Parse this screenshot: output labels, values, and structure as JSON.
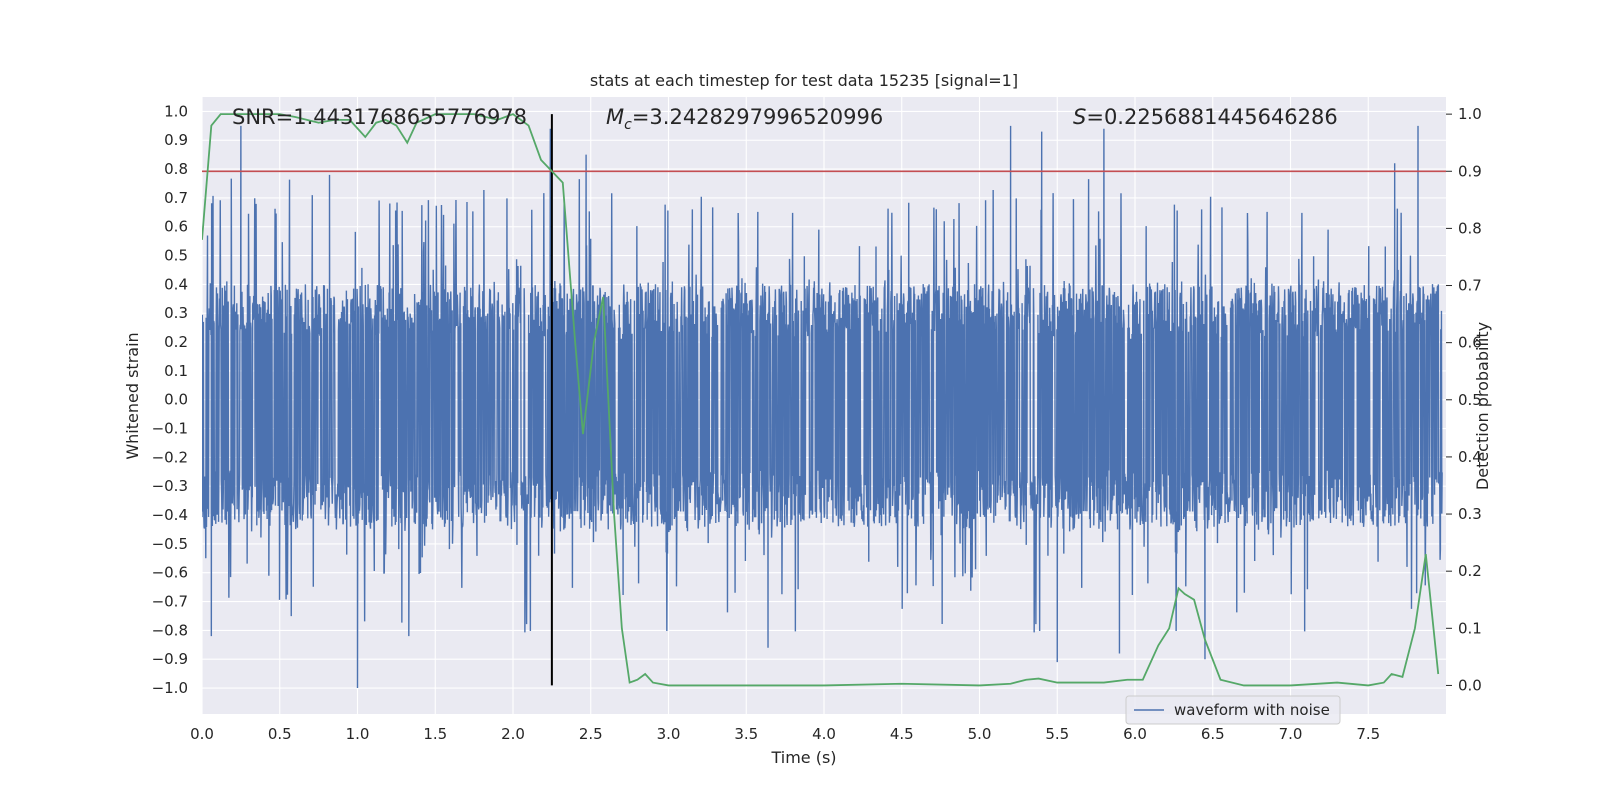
{
  "chart_data": {
    "type": "line",
    "title": "stats at each timestep for test data 15235 [signal=1]",
    "xlabel": "Time (s)",
    "ylabel_left": "Whitened strain",
    "ylabel_right": "Detection probability",
    "xlim": [
      0.0,
      8.0
    ],
    "ylim_left": [
      -1.09,
      1.05
    ],
    "ylim_right": [
      -0.05,
      1.03
    ],
    "x_ticks": [
      "0.0",
      "0.5",
      "1.0",
      "1.5",
      "2.0",
      "2.5",
      "3.0",
      "3.5",
      "4.0",
      "4.5",
      "5.0",
      "5.5",
      "6.0",
      "6.5",
      "7.0",
      "7.5"
    ],
    "y_left_ticks": [
      "1.0",
      "0.9",
      "0.8",
      "0.7",
      "0.6",
      "0.5",
      "0.4",
      "0.3",
      "0.2",
      "0.1",
      "0.0",
      "-0.1",
      "-0.2",
      "-0.3",
      "-0.4",
      "-0.5",
      "-0.6",
      "-0.7",
      "-0.8",
      "-0.9",
      "-1.0"
    ],
    "y_right_ticks": [
      "1.0",
      "0.9",
      "0.8",
      "0.7",
      "0.6",
      "0.5",
      "0.4",
      "0.3",
      "0.2",
      "0.1",
      "0.0"
    ],
    "grid": true,
    "annotations": {
      "snr": "SNR=1.4431768655776978",
      "mc_symbol": "M",
      "mc_sub": "c",
      "mc_value": "=3.2428297996520996",
      "s_symbol": "S",
      "s_value": "=0.2256881445646286"
    },
    "threshold": {
      "value": 0.9,
      "axis": "right",
      "color": "#c44e52"
    },
    "event_line": {
      "x": 2.25,
      "color": "#000000"
    },
    "legend": {
      "label": "waveform with noise",
      "position": "lower-right"
    },
    "series": [
      {
        "name": "waveform with noise",
        "axis": "left",
        "color": "#4c72b0",
        "description": "dense whitened strain noise, core band about -0.45 to 0.4 with spikes up to about 0.95 and down to about -1.0",
        "core_range": [
          -0.45,
          0.4
        ],
        "spikes_high": [
          {
            "x": 0.25,
            "y": 0.95
          },
          {
            "x": 0.82,
            "y": 0.78
          },
          {
            "x": 2.24,
            "y": 0.94
          },
          {
            "x": 2.47,
            "y": 0.85
          },
          {
            "x": 5.2,
            "y": 0.95
          },
          {
            "x": 5.4,
            "y": 0.93
          },
          {
            "x": 5.8,
            "y": 0.94
          },
          {
            "x": 7.82,
            "y": 0.95
          },
          {
            "x": 7.67,
            "y": 0.82
          }
        ],
        "spikes_low": [
          {
            "x": 1.0,
            "y": -1.0
          },
          {
            "x": 0.06,
            "y": -0.82
          },
          {
            "x": 1.33,
            "y": -0.82
          },
          {
            "x": 5.5,
            "y": -0.91
          },
          {
            "x": 5.9,
            "y": -0.88
          },
          {
            "x": 3.64,
            "y": -0.86
          },
          {
            "x": 6.45,
            "y": -0.9
          }
        ]
      },
      {
        "name": "detection probability",
        "axis": "right",
        "color": "#55a868",
        "x": [
          0.0,
          0.06,
          0.12,
          0.2,
          0.3,
          0.5,
          0.6,
          0.75,
          0.85,
          0.95,
          1.05,
          1.12,
          1.18,
          1.25,
          1.32,
          1.38,
          1.5,
          1.6,
          1.75,
          1.9,
          2.0,
          2.1,
          2.18,
          2.25,
          2.32,
          2.4,
          2.45,
          2.52,
          2.58,
          2.65,
          2.7,
          2.75,
          2.8,
          2.85,
          2.9,
          3.0,
          3.5,
          4.0,
          4.5,
          5.0,
          5.2,
          5.3,
          5.38,
          5.5,
          5.8,
          5.95,
          6.05,
          6.15,
          6.22,
          6.28,
          6.32,
          6.38,
          6.45,
          6.55,
          6.7,
          7.0,
          7.3,
          7.5,
          7.6,
          7.65,
          7.72,
          7.8,
          7.87,
          7.95
        ],
        "y": [
          0.78,
          0.98,
          1.0,
          1.0,
          1.0,
          1.0,
          0.995,
          0.985,
          0.99,
          0.99,
          0.96,
          0.985,
          0.99,
          0.98,
          0.95,
          0.985,
          1.0,
          1.0,
          1.0,
          0.99,
          1.0,
          0.98,
          0.92,
          0.9,
          0.88,
          0.6,
          0.44,
          0.6,
          0.68,
          0.3,
          0.1,
          0.005,
          0.01,
          0.02,
          0.005,
          0.0,
          0.0,
          0.0,
          0.003,
          0.0,
          0.003,
          0.01,
          0.012,
          0.005,
          0.005,
          0.01,
          0.01,
          0.07,
          0.1,
          0.17,
          0.16,
          0.15,
          0.08,
          0.01,
          0.0,
          0.0,
          0.005,
          0.0,
          0.005,
          0.02,
          0.015,
          0.1,
          0.23,
          0.02
        ]
      }
    ]
  }
}
